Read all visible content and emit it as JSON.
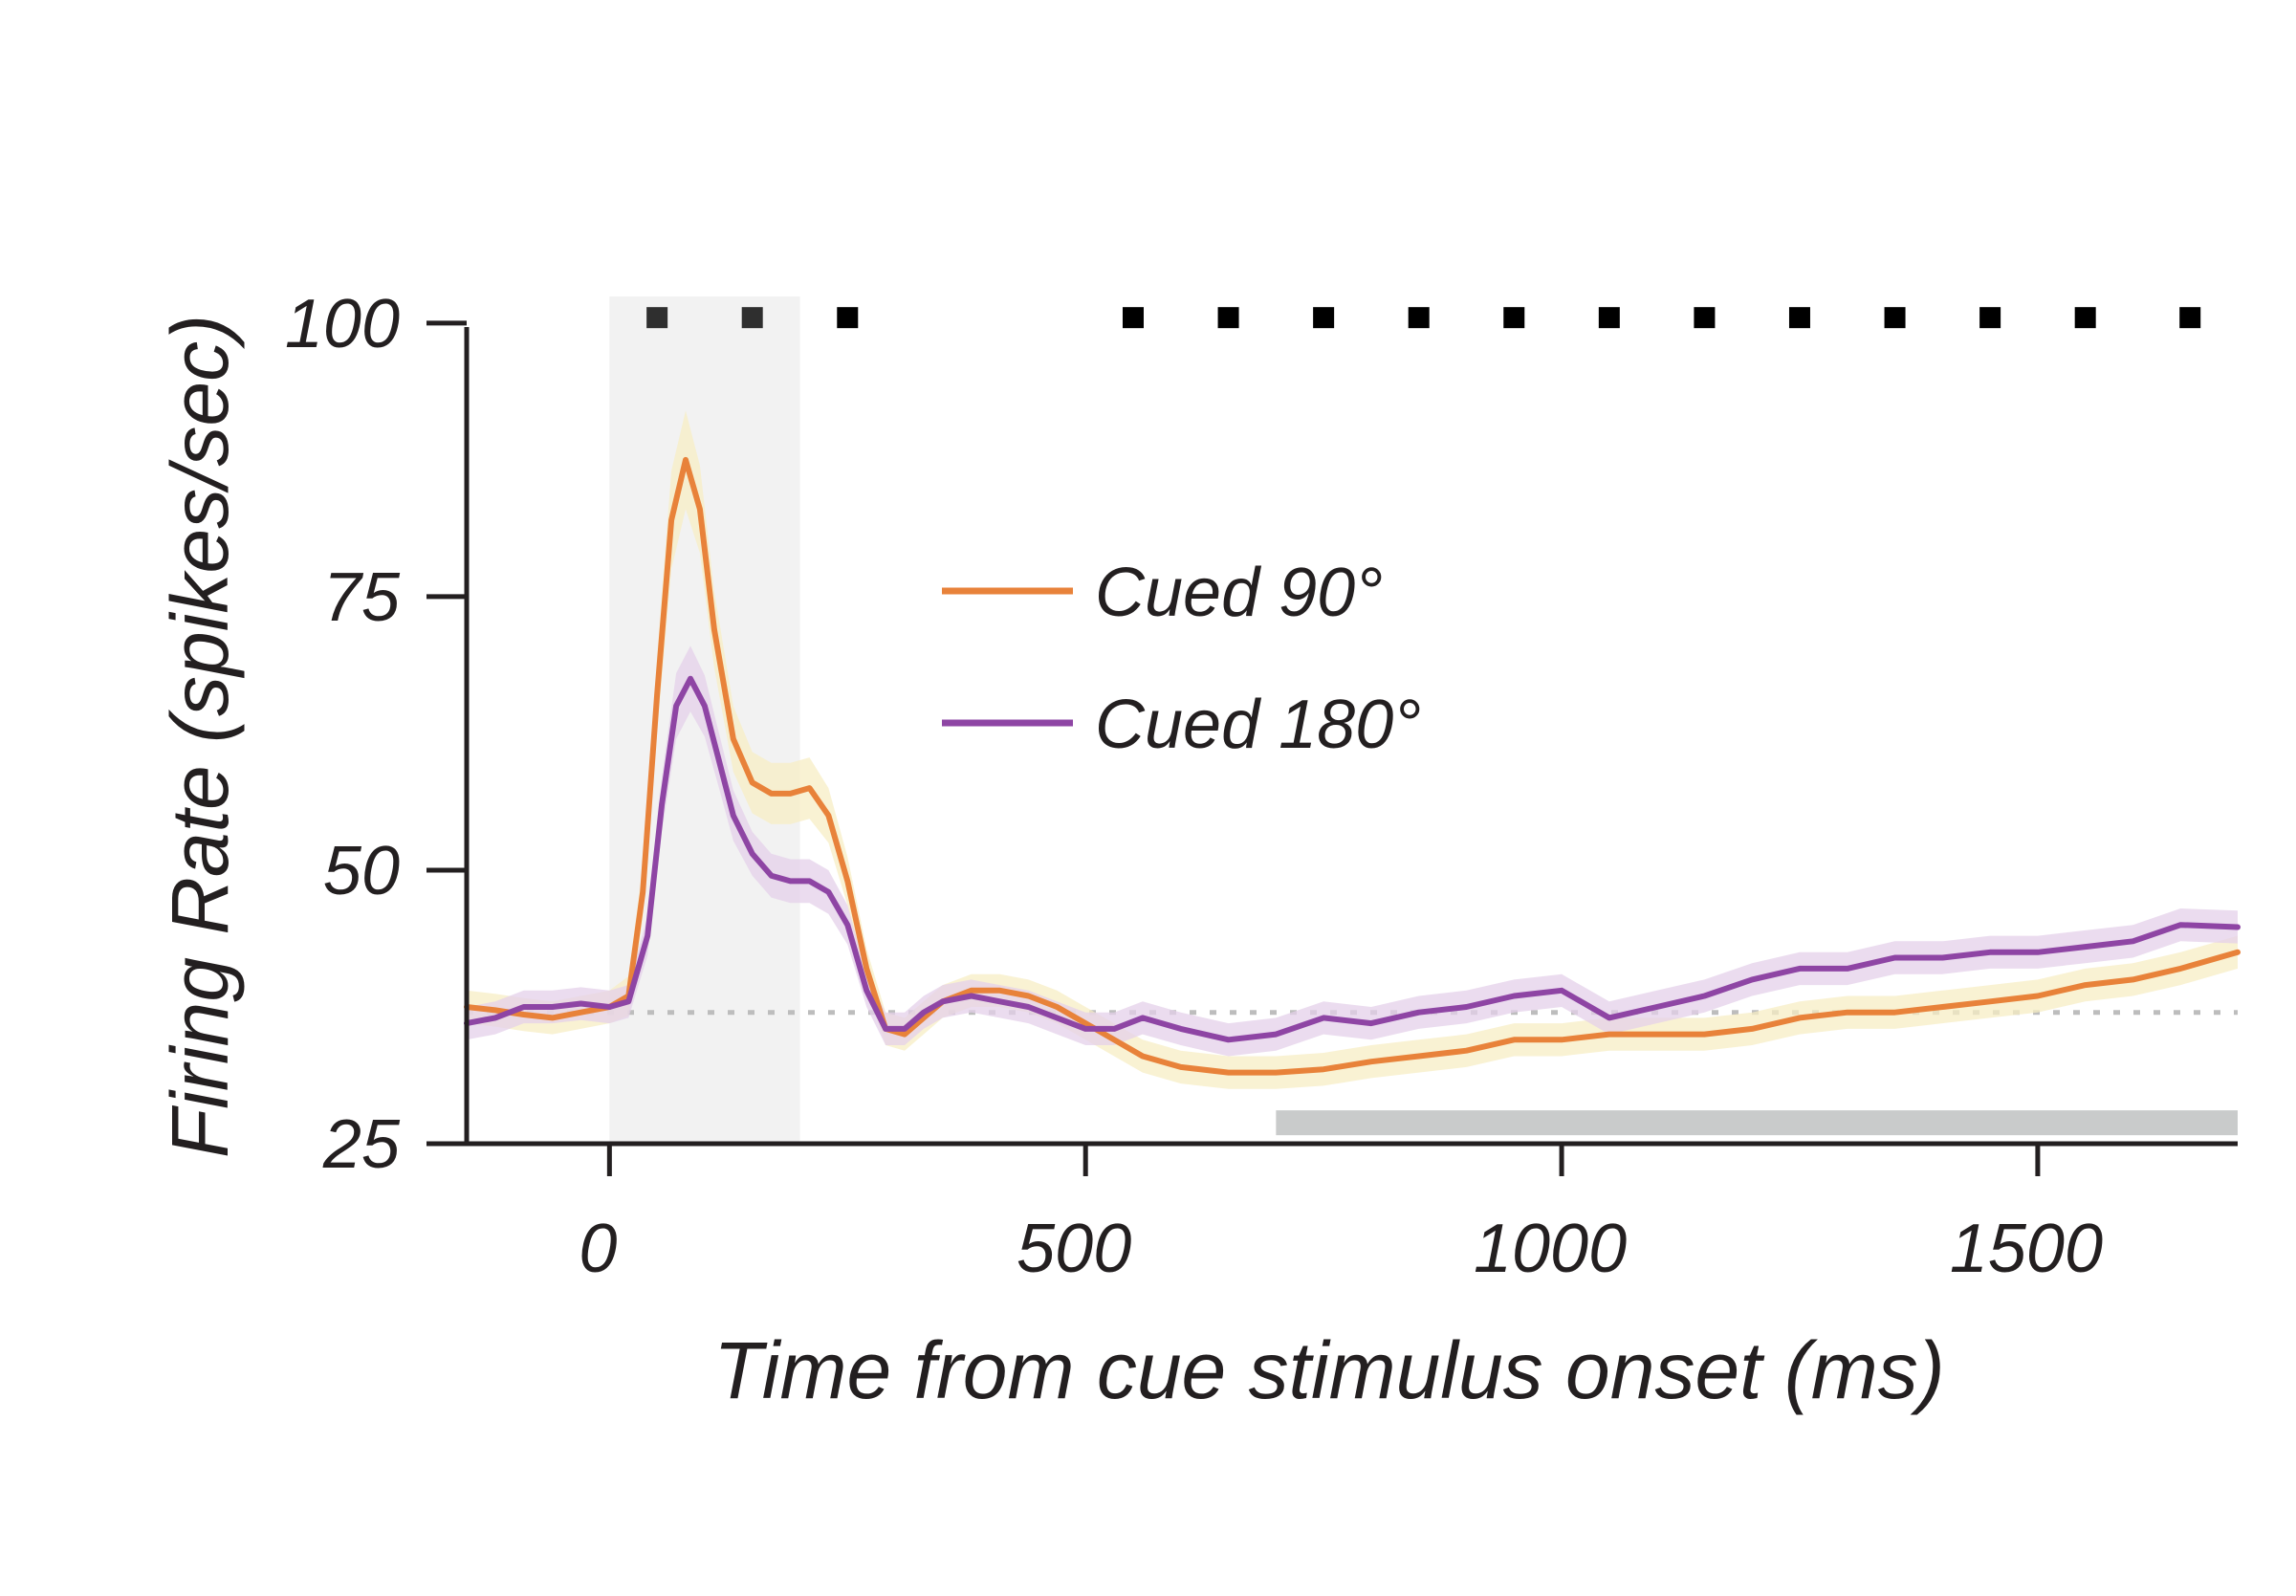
{
  "chart_data": {
    "type": "line",
    "title": "",
    "xlabel": "Time from cue stimulus onset (ms)",
    "ylabel": "Firing Rate (spikes/sec)",
    "xlim": [
      -150,
      1710
    ],
    "ylim": [
      25,
      102
    ],
    "xticks": [
      {
        "value": 0,
        "label": "0"
      },
      {
        "value": 500,
        "label": "500"
      },
      {
        "value": 1000,
        "label": "1000"
      },
      {
        "value": 1500,
        "label": "1500"
      }
    ],
    "yticks": [
      {
        "value": 25,
        "label": "25"
      },
      {
        "value": 50,
        "label": "50"
      },
      {
        "value": 75,
        "label": "75"
      },
      {
        "value": 100,
        "label": "100"
      }
    ],
    "grid": false,
    "legend_position": "center",
    "cue_window": {
      "x_start": 0,
      "x_end": 200,
      "color": "#f2f2f2"
    },
    "baseline": {
      "y": 37,
      "color": "#bdbdbd",
      "style": "dotted"
    },
    "sustained_period_bar": {
      "x_start": 700,
      "x_end": 1710,
      "y": 27,
      "color": "#c9cbcb"
    },
    "significance_markers": {
      "y": 100.5,
      "x": [
        50,
        150,
        250,
        550,
        650,
        750,
        850,
        950,
        1050,
        1150,
        1250,
        1350,
        1450,
        1550,
        1660
      ],
      "colors": [
        "#2f2f2f",
        "#2f2f2f",
        "#000000",
        "#000000",
        "#000000",
        "#000000",
        "#000000",
        "#000000",
        "#000000",
        "#000000",
        "#000000",
        "#000000",
        "#000000",
        "#000000",
        "#000000"
      ]
    },
    "series": [
      {
        "name": "Cued 90°",
        "color": "#e8823a",
        "band_color": "#f7edc4",
        "x": [
          -150,
          -120,
          -90,
          -60,
          -30,
          0,
          20,
          35,
          50,
          65,
          80,
          95,
          110,
          130,
          150,
          170,
          190,
          210,
          230,
          250,
          270,
          290,
          310,
          330,
          350,
          380,
          410,
          440,
          470,
          500,
          530,
          560,
          600,
          650,
          700,
          750,
          800,
          850,
          900,
          950,
          1000,
          1050,
          1100,
          1150,
          1200,
          1250,
          1300,
          1350,
          1400,
          1450,
          1500,
          1550,
          1600,
          1650,
          1710
        ],
        "y": [
          37.5,
          37.2,
          36.8,
          36.5,
          37,
          37.5,
          38.5,
          48,
          66,
          82,
          87.5,
          83,
          72,
          62,
          58,
          57,
          57,
          57.5,
          55,
          49,
          41,
          35.5,
          35,
          36.5,
          38,
          39,
          39,
          38.5,
          37.5,
          36,
          34.5,
          33,
          32,
          31.5,
          31.5,
          31.8,
          32.5,
          33,
          33.5,
          34.5,
          34.5,
          35,
          35,
          35,
          35.5,
          36.5,
          37,
          37,
          37.5,
          38,
          38.5,
          39.5,
          40,
          41,
          42.5
        ],
        "band": [
          1.5,
          1.5,
          1.5,
          1.5,
          1.5,
          1.5,
          1.8,
          2.5,
          3.5,
          4.5,
          4.5,
          4,
          3.5,
          3,
          2.8,
          2.8,
          2.8,
          2.8,
          2.5,
          2.2,
          1.8,
          1.5,
          1.5,
          1.5,
          1.5,
          1.5,
          1.5,
          1.5,
          1.5,
          1.5,
          1.5,
          1.5,
          1.5,
          1.5,
          1.5,
          1.5,
          1.5,
          1.5,
          1.5,
          1.5,
          1.5,
          1.5,
          1.5,
          1.5,
          1.5,
          1.5,
          1.5,
          1.5,
          1.5,
          1.5,
          1.5,
          1.5,
          1.5,
          1.5,
          1.5
        ]
      },
      {
        "name": "Cued 180°",
        "color": "#8e45a4",
        "band_color": "#e4d0ea",
        "x": [
          -150,
          -120,
          -90,
          -60,
          -30,
          0,
          20,
          40,
          55,
          70,
          85,
          100,
          115,
          130,
          150,
          170,
          190,
          210,
          230,
          250,
          270,
          290,
          310,
          330,
          350,
          380,
          410,
          440,
          470,
          500,
          530,
          560,
          600,
          650,
          700,
          750,
          800,
          850,
          900,
          950,
          1000,
          1050,
          1100,
          1150,
          1200,
          1250,
          1300,
          1350,
          1400,
          1450,
          1500,
          1550,
          1600,
          1650,
          1710
        ],
        "y": [
          36,
          36.5,
          37.5,
          37.5,
          37.8,
          37.5,
          38,
          44,
          56,
          65,
          67.5,
          65,
          60,
          55,
          51.5,
          49.5,
          49,
          49,
          48,
          45,
          39,
          35.5,
          35.5,
          37,
          38,
          38.5,
          38,
          37.5,
          36.5,
          35.5,
          35.5,
          36.5,
          35.5,
          34.5,
          35,
          36.5,
          36,
          37,
          37.5,
          38.5,
          39,
          36.5,
          37.5,
          38.5,
          40,
          41,
          41,
          42,
          42,
          42.5,
          42.5,
          43,
          43.5,
          45,
          44.8
        ],
        "band": [
          1.5,
          1.5,
          1.5,
          1.5,
          1.5,
          1.5,
          1.5,
          1.8,
          2.5,
          3,
          3,
          2.8,
          2.5,
          2.3,
          2,
          2,
          2,
          2,
          2,
          1.8,
          1.5,
          1.5,
          1.5,
          1.5,
          1.5,
          1.5,
          1.5,
          1.5,
          1.5,
          1.5,
          1.5,
          1.5,
          1.5,
          1.5,
          1.5,
          1.5,
          1.5,
          1.5,
          1.5,
          1.5,
          1.5,
          1.5,
          1.5,
          1.5,
          1.5,
          1.5,
          1.5,
          1.5,
          1.5,
          1.5,
          1.5,
          1.5,
          1.5,
          1.5,
          1.5
        ]
      }
    ]
  }
}
